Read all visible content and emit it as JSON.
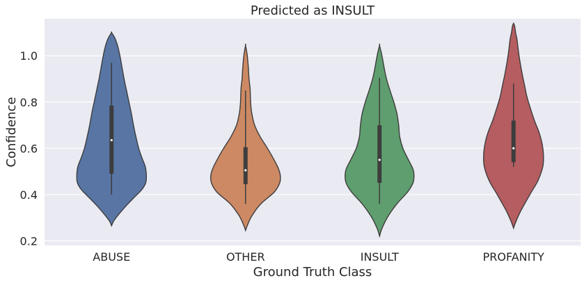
{
  "chart_data": {
    "type": "violin",
    "title": "Predicted as INSULT",
    "xlabel": "Ground Truth Class",
    "ylabel": "Confidence",
    "ylim": [
      0.18,
      1.16
    ],
    "yticks": [
      0.2,
      0.4,
      0.6,
      0.8,
      1.0
    ],
    "ytick_labels": [
      "0.2",
      "0.4",
      "0.6",
      "0.8",
      "1.0"
    ],
    "grid": true,
    "background": "#eaeaf2",
    "categories": [
      "ABUSE",
      "OTHER",
      "INSULT",
      "PROFANITY"
    ],
    "series": [
      {
        "category": "ABUSE",
        "color": "#5875a4",
        "box": {
          "whisker_low": 0.4,
          "q1": 0.49,
          "median": 0.635,
          "q3": 0.785,
          "whisker_high": 0.97
        },
        "density": [
          [
            0.265,
            0.0
          ],
          [
            0.29,
            0.08
          ],
          [
            0.34,
            0.35
          ],
          [
            0.38,
            0.6
          ],
          [
            0.42,
            0.86
          ],
          [
            0.45,
            0.98
          ],
          [
            0.48,
            1.0
          ],
          [
            0.52,
            0.97
          ],
          [
            0.56,
            0.87
          ],
          [
            0.6,
            0.78
          ],
          [
            0.65,
            0.7
          ],
          [
            0.7,
            0.63
          ],
          [
            0.75,
            0.57
          ],
          [
            0.8,
            0.5
          ],
          [
            0.85,
            0.43
          ],
          [
            0.9,
            0.36
          ],
          [
            0.95,
            0.3
          ],
          [
            1.0,
            0.24
          ],
          [
            1.04,
            0.18
          ],
          [
            1.075,
            0.1
          ],
          [
            1.1,
            0.0
          ]
        ]
      },
      {
        "category": "OTHER",
        "color": "#cc8963",
        "box": {
          "whisker_low": 0.36,
          "q1": 0.445,
          "median": 0.505,
          "q3": 0.605,
          "whisker_high": 0.85
        },
        "density": [
          [
            0.245,
            0.0
          ],
          [
            0.27,
            0.06
          ],
          [
            0.31,
            0.19
          ],
          [
            0.36,
            0.44
          ],
          [
            0.41,
            0.82
          ],
          [
            0.45,
            0.98
          ],
          [
            0.48,
            1.0
          ],
          [
            0.51,
            0.95
          ],
          [
            0.55,
            0.82
          ],
          [
            0.6,
            0.63
          ],
          [
            0.65,
            0.42
          ],
          [
            0.7,
            0.26
          ],
          [
            0.75,
            0.18
          ],
          [
            0.79,
            0.15
          ],
          [
            0.82,
            0.14
          ],
          [
            0.86,
            0.13
          ],
          [
            0.9,
            0.1
          ],
          [
            0.95,
            0.08
          ],
          [
            1.0,
            0.05
          ],
          [
            1.045,
            0.0
          ]
        ]
      },
      {
        "category": "INSULT",
        "color": "#5f9e6e",
        "box": {
          "whisker_low": 0.36,
          "q1": 0.45,
          "median": 0.55,
          "q3": 0.7,
          "whisker_high": 0.905
        },
        "density": [
          [
            0.22,
            0.0
          ],
          [
            0.25,
            0.06
          ],
          [
            0.3,
            0.22
          ],
          [
            0.36,
            0.5
          ],
          [
            0.41,
            0.8
          ],
          [
            0.45,
            0.96
          ],
          [
            0.48,
            0.99
          ],
          [
            0.51,
            0.96
          ],
          [
            0.55,
            0.83
          ],
          [
            0.6,
            0.67
          ],
          [
            0.65,
            0.58
          ],
          [
            0.7,
            0.55
          ],
          [
            0.75,
            0.5
          ],
          [
            0.8,
            0.41
          ],
          [
            0.85,
            0.3
          ],
          [
            0.9,
            0.2
          ],
          [
            0.95,
            0.13
          ],
          [
            1.0,
            0.07
          ],
          [
            1.045,
            0.0
          ]
        ]
      },
      {
        "category": "PROFANITY",
        "color": "#b55d60",
        "box": {
          "whisker_low": 0.52,
          "q1": 0.54,
          "median": 0.6,
          "q3": 0.72,
          "whisker_high": 0.88
        },
        "density": [
          [
            0.255,
            0.0
          ],
          [
            0.28,
            0.06
          ],
          [
            0.33,
            0.21
          ],
          [
            0.4,
            0.47
          ],
          [
            0.46,
            0.7
          ],
          [
            0.52,
            0.84
          ],
          [
            0.57,
            0.86
          ],
          [
            0.62,
            0.82
          ],
          [
            0.67,
            0.73
          ],
          [
            0.72,
            0.6
          ],
          [
            0.77,
            0.49
          ],
          [
            0.82,
            0.39
          ],
          [
            0.87,
            0.32
          ],
          [
            0.92,
            0.25
          ],
          [
            0.97,
            0.19
          ],
          [
            1.02,
            0.14
          ],
          [
            1.07,
            0.1
          ],
          [
            1.1,
            0.06
          ],
          [
            1.13,
            0.03
          ],
          [
            1.14,
            0.0
          ]
        ]
      }
    ]
  }
}
